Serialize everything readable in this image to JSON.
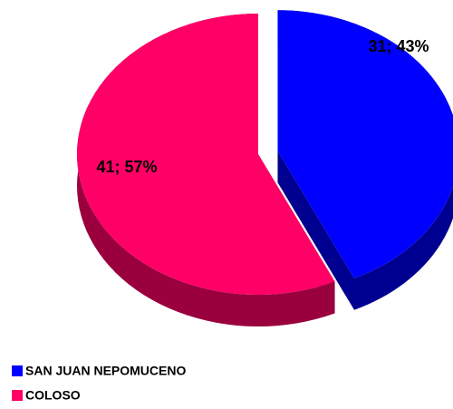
{
  "chart_data": {
    "type": "pie3d",
    "categories": [
      "SAN JUAN NEPOMUCENO",
      "COLOSO"
    ],
    "values": [
      31,
      41
    ],
    "value_labels": [
      "31; 43%",
      "41; 57%"
    ],
    "colors": [
      "#0000ff",
      "#ff0066"
    ],
    "side_colors": [
      "#000090",
      "#9a003e"
    ],
    "legend": "bottom-left"
  }
}
